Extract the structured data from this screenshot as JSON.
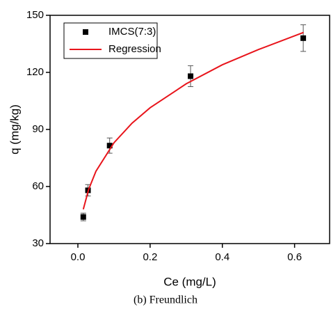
{
  "chart_data": {
    "type": "scatter",
    "x_label": "Ce (mg/L)",
    "y_label": "q (mg/kg)",
    "caption": "(b) Freundlich",
    "xlim": [
      -0.077,
      0.697
    ],
    "ylim": [
      30,
      150
    ],
    "xticks": [
      {
        "value": 0,
        "label": "0.0"
      },
      0.2,
      0.4,
      0.6
    ],
    "yticks": [
      30,
      60,
      90,
      120,
      150
    ],
    "legend": "upper left",
    "series": [
      {
        "name": "IMCS(7:3)",
        "color": "#000000",
        "mode": "markers",
        "x": [
          0.015,
          0.028,
          0.088,
          0.312,
          0.624
        ],
        "values": [
          44,
          58,
          81.5,
          118,
          138
        ],
        "errors": [
          2,
          3,
          4,
          5.5,
          7
        ]
      },
      {
        "name": "Regression",
        "color": "#e8141b",
        "mode": "line",
        "x": [
          0.015,
          0.03,
          0.05,
          0.1,
          0.15,
          0.2,
          0.3,
          0.4,
          0.5,
          0.625
        ],
        "values": [
          48,
          58.6,
          68,
          83,
          93.3,
          101.4,
          114,
          124,
          132,
          141
        ]
      }
    ]
  }
}
